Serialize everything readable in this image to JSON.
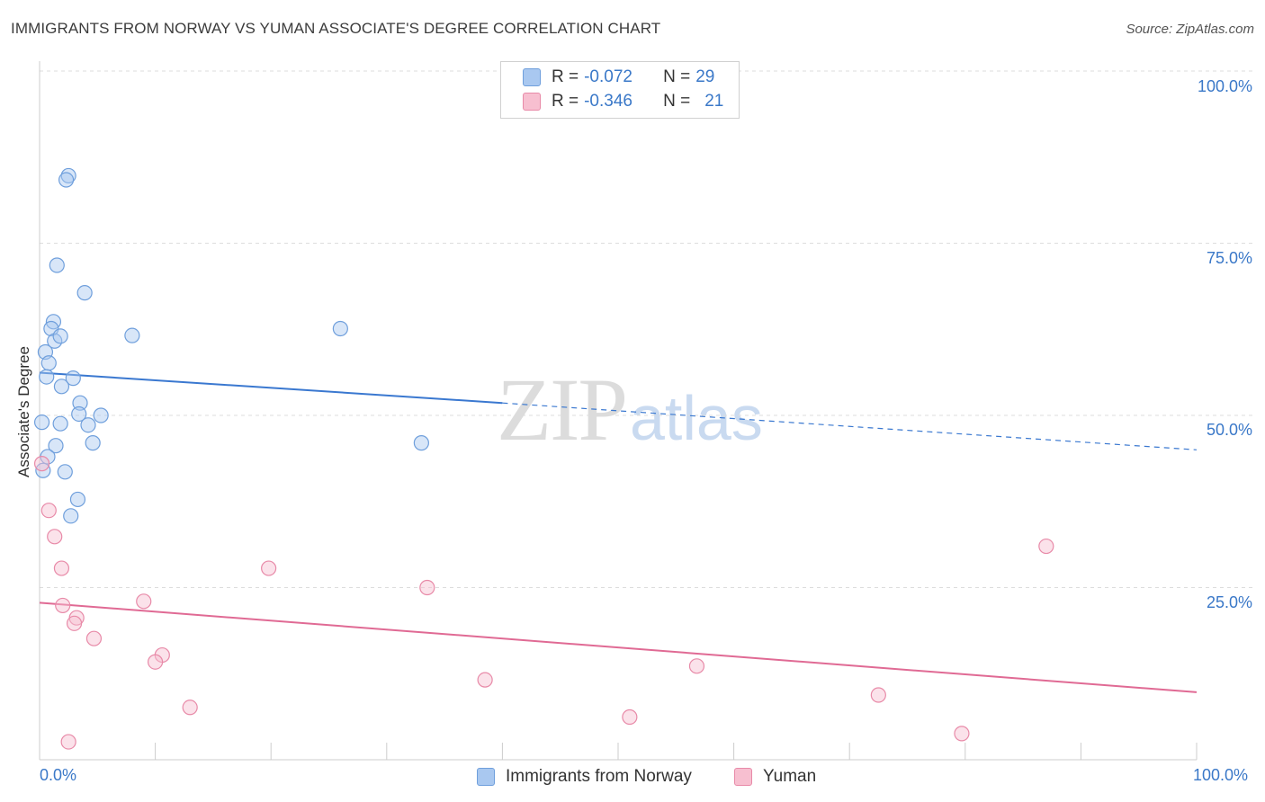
{
  "header": {
    "title": "IMMIGRANTS FROM NORWAY VS YUMAN ASSOCIATE'S DEGREE CORRELATION CHART",
    "source": "Source: ZipAtlas.com"
  },
  "watermark": {
    "zip": "ZIP",
    "atlas": "atlas"
  },
  "legend_top": {
    "rows": [
      {
        "r_label": "R =",
        "r_value": "-0.072",
        "n_label": "N =",
        "n_value": "29",
        "color": "#a9c8f0",
        "border": "#6f9fdc"
      },
      {
        "r_label": "R =",
        "r_value": "-0.346",
        "n_label": "N =",
        "n_value": "21",
        "color": "#f7bfd0",
        "border": "#e88aa8"
      }
    ]
  },
  "legend_bottom": {
    "items": [
      {
        "label": "Immigrants from Norway",
        "color": "#a9c8f0",
        "border": "#6f9fdc"
      },
      {
        "label": "Yuman",
        "color": "#f7bfd0",
        "border": "#e88aa8"
      }
    ]
  },
  "axes": {
    "ylabel": "Associate's Degree",
    "x_tick_left": "0.0%",
    "x_tick_right": "100.0%",
    "y_ticks": [
      "100.0%",
      "75.0%",
      "50.0%",
      "25.0%"
    ]
  },
  "chart_data": {
    "type": "scatter",
    "title": "IMMIGRANTS FROM NORWAY VS YUMAN ASSOCIATE'S DEGREE CORRELATION CHART",
    "xlabel": "",
    "ylabel": "Associate's Degree",
    "xlim": [
      0,
      100
    ],
    "ylim": [
      0,
      100
    ],
    "grid": true,
    "legend_placement": "bottom",
    "series": [
      {
        "name": "Immigrants from Norway",
        "color": "#6f9fdc",
        "points": [
          [
            2.5,
            84.8
          ],
          [
            2.3,
            84.2
          ],
          [
            1.5,
            71.8
          ],
          [
            3.9,
            67.8
          ],
          [
            1.2,
            63.6
          ],
          [
            1.0,
            62.6
          ],
          [
            1.3,
            60.8
          ],
          [
            1.8,
            61.5
          ],
          [
            8.0,
            61.6
          ],
          [
            26.0,
            62.6
          ],
          [
            0.5,
            59.2
          ],
          [
            0.8,
            57.6
          ],
          [
            0.6,
            55.6
          ],
          [
            2.9,
            55.4
          ],
          [
            1.9,
            54.2
          ],
          [
            3.5,
            51.8
          ],
          [
            3.4,
            50.2
          ],
          [
            5.3,
            50.0
          ],
          [
            0.2,
            49.0
          ],
          [
            1.8,
            48.8
          ],
          [
            4.2,
            48.6
          ],
          [
            1.4,
            45.6
          ],
          [
            4.6,
            46.0
          ],
          [
            33.0,
            46.0
          ],
          [
            0.7,
            44.0
          ],
          [
            2.2,
            41.8
          ],
          [
            3.3,
            37.8
          ],
          [
            2.7,
            35.4
          ],
          [
            0.3,
            42.0
          ]
        ],
        "trend": {
          "x": [
            0,
            40,
            100
          ],
          "y": [
            56.2,
            51.8,
            45.0
          ],
          "solid_until": 40
        }
      },
      {
        "name": "Yuman",
        "color": "#e88aa8",
        "points": [
          [
            0.2,
            43.0
          ],
          [
            0.8,
            36.2
          ],
          [
            1.3,
            32.4
          ],
          [
            1.9,
            27.8
          ],
          [
            2.0,
            22.4
          ],
          [
            3.2,
            20.6
          ],
          [
            3.0,
            19.8
          ],
          [
            4.7,
            17.6
          ],
          [
            9.0,
            23.0
          ],
          [
            10.6,
            15.2
          ],
          [
            10.0,
            14.2
          ],
          [
            13.0,
            7.6
          ],
          [
            2.5,
            2.6
          ],
          [
            19.8,
            27.8
          ],
          [
            33.5,
            25.0
          ],
          [
            38.5,
            11.6
          ],
          [
            51.0,
            6.2
          ],
          [
            56.8,
            13.6
          ],
          [
            72.5,
            9.4
          ],
          [
            79.7,
            3.8
          ],
          [
            87.0,
            31.0
          ]
        ],
        "trend": {
          "x": [
            0,
            100
          ],
          "y": [
            22.8,
            9.8
          ]
        }
      }
    ]
  }
}
